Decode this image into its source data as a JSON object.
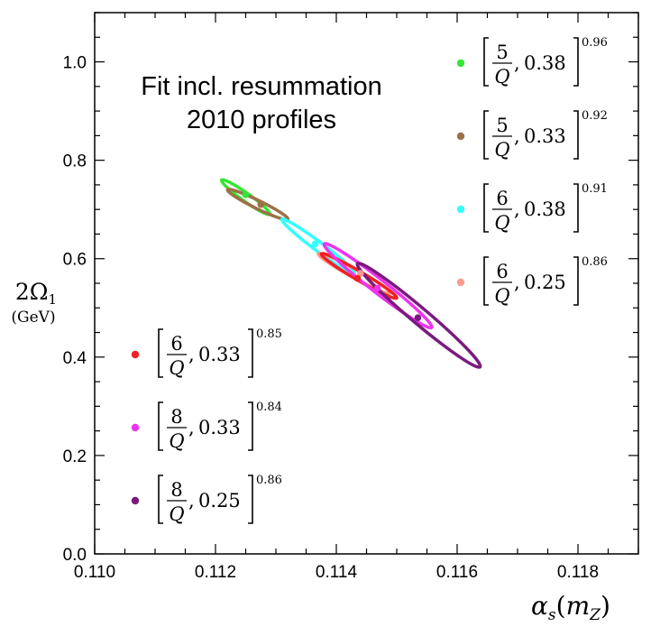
{
  "chart_data": {
    "type": "scatter",
    "title_lines": [
      "Fit incl. resummation",
      "2010 profiles"
    ],
    "xlabel": {
      "main": "α",
      "sub": "s",
      "paren_open": "(",
      "arg": "m",
      "arg_sub": "Z",
      "paren_close": ")"
    },
    "ylabel": {
      "main": "2Ω",
      "sub": "1",
      "unit": "(GeV)"
    },
    "xlim": [
      0.11,
      0.119
    ],
    "ylim": [
      0.0,
      1.1
    ],
    "xticks": [
      "0.110",
      "0.112",
      "0.114",
      "0.116",
      "0.118"
    ],
    "xtick_values": [
      0.11,
      0.112,
      0.114,
      0.116,
      0.118
    ],
    "yticks": [
      "0.0",
      "0.2",
      "0.4",
      "0.6",
      "0.8",
      "1.0"
    ],
    "ytick_values": [
      0.0,
      0.2,
      0.4,
      0.6,
      0.8,
      1.0
    ],
    "series": [
      {
        "name": "[5/Q, 0.38]^0.96",
        "numerator": "5",
        "denominator": "Q",
        "value": "0.38",
        "exponent": "0.96",
        "color": "#33e633",
        "center": [
          0.1125,
          0.73
        ],
        "ellipse": {
          "x_min": 0.1121,
          "x_max": 0.1129,
          "y_min": 0.69,
          "y_max": 0.76
        }
      },
      {
        "name": "[5/Q, 0.33]^0.92",
        "numerator": "5",
        "denominator": "Q",
        "value": "0.33",
        "exponent": "0.92",
        "color": "#9c7146",
        "center": [
          0.11275,
          0.71
        ],
        "ellipse": {
          "x_min": 0.1122,
          "x_max": 0.1132,
          "y_min": 0.68,
          "y_max": 0.74
        }
      },
      {
        "name": "[6/Q, 0.38]^0.91",
        "numerator": "6",
        "denominator": "Q",
        "value": "0.38",
        "exponent": "0.91",
        "color": "#33ffff",
        "center": [
          0.11365,
          0.63
        ],
        "ellipse": {
          "x_min": 0.1131,
          "x_max": 0.1143,
          "y_min": 0.57,
          "y_max": 0.68
        }
      },
      {
        "name": "[6/Q, 0.25]^0.86",
        "numerator": "6",
        "denominator": "Q",
        "value": "0.25",
        "exponent": "0.86",
        "color": "#ff9a90",
        "center": [
          0.1144,
          0.57
        ],
        "ellipse": {
          "x_min": 0.1137,
          "x_max": 0.1149,
          "y_min": 0.53,
          "y_max": 0.61
        }
      },
      {
        "name": "[6/Q, 0.33]^0.85",
        "numerator": "6",
        "denominator": "Q",
        "value": "0.33",
        "exponent": "0.85",
        "color": "#ee2222",
        "center": [
          0.11435,
          0.56
        ],
        "ellipse": {
          "x_min": 0.11375,
          "x_max": 0.115,
          "y_min": 0.52,
          "y_max": 0.61
        }
      },
      {
        "name": "[8/Q, 0.33]^0.84",
        "numerator": "8",
        "denominator": "Q",
        "value": "0.33",
        "exponent": "0.84",
        "color": "#ee33ee",
        "center": [
          0.11468,
          0.54
        ],
        "ellipse": {
          "x_min": 0.1138,
          "x_max": 0.11558,
          "y_min": 0.46,
          "y_max": 0.63
        }
      },
      {
        "name": "[8/Q, 0.25]^0.86",
        "numerator": "8",
        "denominator": "Q",
        "value": "0.25",
        "exponent": "0.86",
        "color": "#7a1a7e",
        "center": [
          0.11535,
          0.48
        ],
        "ellipse": {
          "x_min": 0.11435,
          "x_max": 0.11638,
          "y_min": 0.38,
          "y_max": 0.59
        }
      }
    ]
  }
}
